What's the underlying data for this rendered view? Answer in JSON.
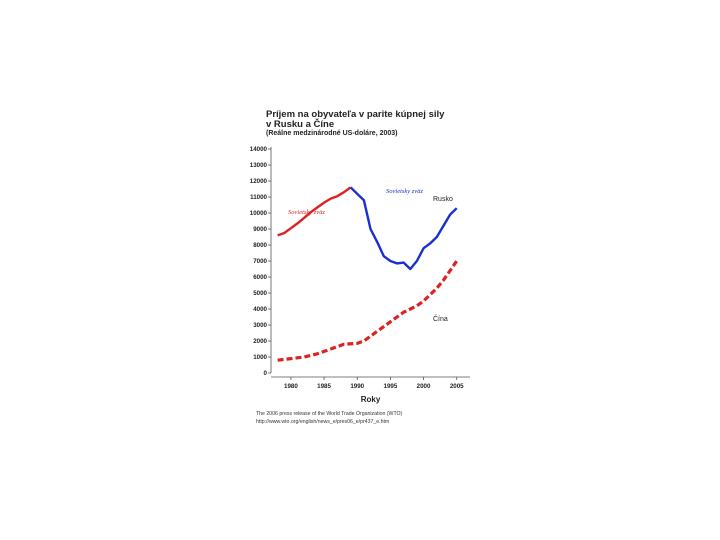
{
  "chart_data": {
    "type": "line",
    "title_lines": [
      "Príjem na obyvateľa v parite kúpnej sily",
      "v Rusku a Číne"
    ],
    "subtitle": "(Reálne medzinárodné US-doláre, 2003)",
    "xlabel": "Roky",
    "ylabel": "",
    "xlim": [
      1977,
      2007
    ],
    "ylim": [
      0,
      14000
    ],
    "x_ticks": [
      1980,
      1985,
      1990,
      1995,
      2000,
      2005
    ],
    "y_ticks": [
      0,
      1000,
      2000,
      3000,
      4000,
      5000,
      6000,
      7000,
      8000,
      9000,
      10000,
      11000,
      12000,
      13000,
      14000
    ],
    "series": [
      {
        "name": "Rusko (Sovietsky zväz)",
        "color": "#dd2222",
        "style": "solid",
        "x": [
          1978,
          1979,
          1980,
          1981,
          1982,
          1983,
          1984,
          1985,
          1986,
          1987,
          1988,
          1989
        ],
        "y": [
          8600,
          8750,
          9050,
          9350,
          9700,
          10050,
          10350,
          10650,
          10900,
          11050,
          11300,
          11600
        ]
      },
      {
        "name": "Rusko",
        "color": "#1a2fd0",
        "style": "solid",
        "x": [
          1989,
          1990,
          1991,
          1992,
          1993,
          1994,
          1995,
          1996,
          1997,
          1998,
          1999,
          2000,
          2001,
          2002,
          2003,
          2004,
          2005
        ],
        "y": [
          11600,
          11200,
          10800,
          9000,
          8200,
          7300,
          7000,
          6850,
          6900,
          6500,
          7000,
          7800,
          8100,
          8500,
          9200,
          9900,
          10300
        ]
      },
      {
        "name": "Čína",
        "color": "#dd2222",
        "style": "dashed",
        "x": [
          1978,
          1980,
          1982,
          1984,
          1985,
          1986,
          1987,
          1988,
          1990,
          1991,
          1992,
          1993,
          1994,
          1995,
          1996,
          1997,
          1998,
          1999,
          2000,
          2001,
          2002,
          2003,
          2004,
          2005
        ],
        "y": [
          800,
          900,
          1000,
          1200,
          1350,
          1500,
          1650,
          1800,
          1850,
          2000,
          2300,
          2600,
          2900,
          3200,
          3500,
          3800,
          4000,
          4200,
          4500,
          4900,
          5300,
          5800,
          6400,
          7000
        ]
      }
    ],
    "annotations": [
      "Sovietsky zväz",
      "Sovietsky zväz",
      "Rusko",
      "Čína"
    ]
  },
  "source_lines": [
    "The 2006 press release of the World Trade Organization (WTO)",
    "http://www.wto.org/english/news_e/pres06_e/pr437_e.htm"
  ]
}
